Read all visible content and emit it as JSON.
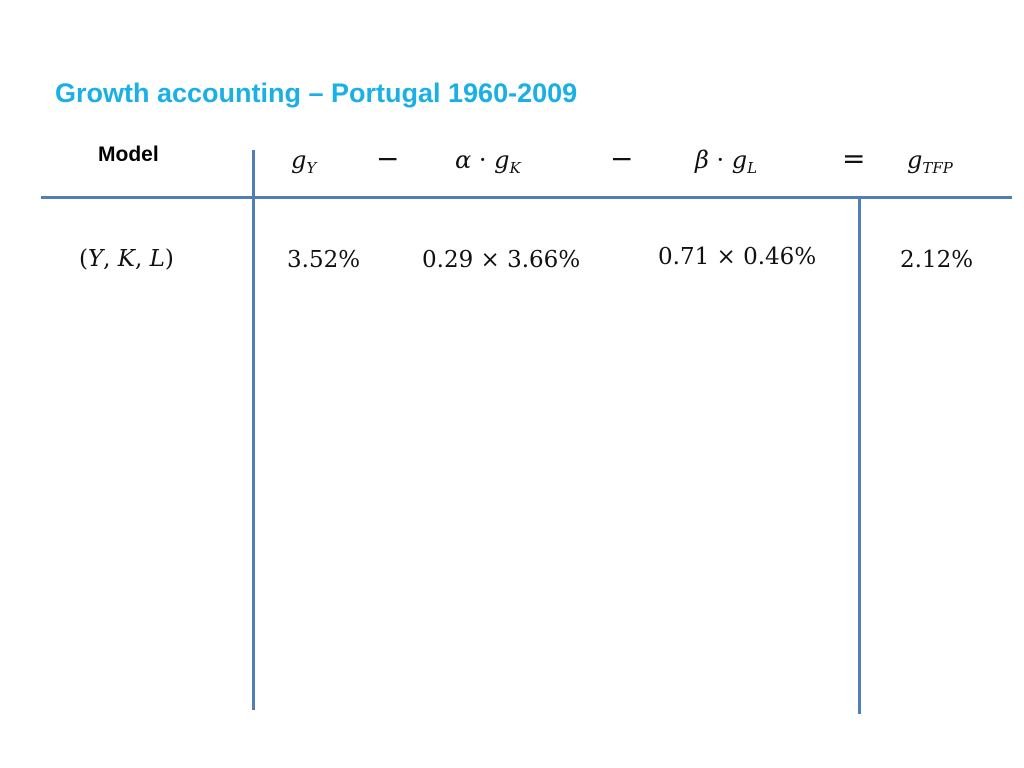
{
  "slide": {
    "title": "Growth accounting – Portugal 1960-2009"
  },
  "table": {
    "header": {
      "model_label": "Model",
      "gY": {
        "base": "g",
        "sub": "Y"
      },
      "minus1": "−",
      "alpha_gK": {
        "coef": "α",
        "dot": "·",
        "base": "g",
        "sub": "K"
      },
      "minus2": "−",
      "beta_gL": {
        "coef": "β",
        "dot": "·",
        "base": "g",
        "sub": "L"
      },
      "equals": "=",
      "gTFP": {
        "base": "g",
        "sub": "TFP"
      }
    },
    "rows": [
      {
        "model": {
          "open": "(",
          "v1": "Y",
          "sep1": ", ",
          "v2": "K",
          "sep2": ", ",
          "v3": "L",
          "close": ")"
        },
        "gY": "3.52%",
        "alpha_gK": "0.29 × 3.66%",
        "beta_gL": "0.71 × 0.46%",
        "gTFP": "2.12%"
      }
    ]
  },
  "colors": {
    "title": "#1ab0e6",
    "rules": "#4f7fb4",
    "text": "#111111"
  }
}
